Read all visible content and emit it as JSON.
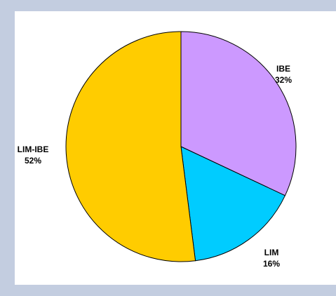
{
  "chart_data": {
    "type": "pie",
    "categories": [
      "IBE",
      "LIM",
      "LIM-IBE"
    ],
    "values": [
      32,
      16,
      52
    ],
    "unit": "%",
    "colors": [
      "#cc99ff",
      "#00ccff",
      "#ffcc00"
    ],
    "labels": [
      {
        "name": "IBE",
        "value": "32%"
      },
      {
        "name": "LIM",
        "value": "16%"
      },
      {
        "name": "LIM-IBE",
        "value": "52%"
      }
    ],
    "start_angle_deg": 0,
    "direction": "clockwise",
    "legend": "none"
  }
}
